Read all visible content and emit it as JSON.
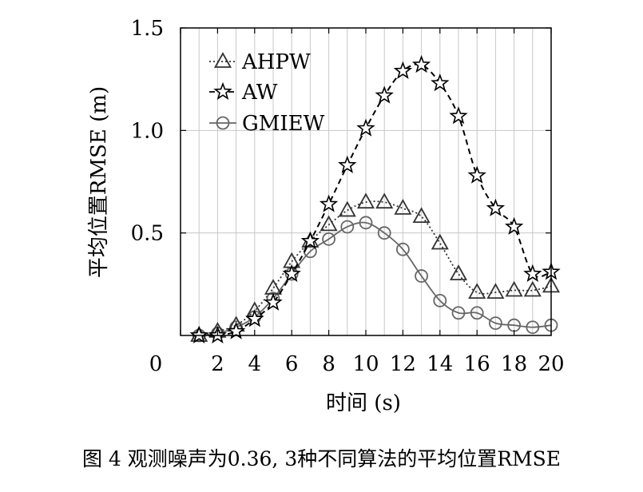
{
  "chart_data": {
    "type": "line",
    "x": [
      1,
      2,
      3,
      4,
      5,
      6,
      7,
      8,
      9,
      10,
      11,
      12,
      13,
      14,
      15,
      16,
      17,
      18,
      19,
      20
    ],
    "xlim": [
      0,
      20
    ],
    "ylim": [
      0,
      1.5
    ],
    "xticks": [
      "0",
      "2",
      "4",
      "6",
      "8",
      "10",
      "12",
      "14",
      "16",
      "18",
      "20"
    ],
    "yticks": [
      "0.5",
      "1.0",
      "1.5"
    ],
    "ylabel": "平均位置RMSE (m)",
    "xlabel": "时间 (s)",
    "grid": true,
    "legend_position": "top-left",
    "series": [
      {
        "name": "AHPW",
        "marker": "triangle",
        "line": "dotted",
        "color": "#333333",
        "values": [
          0.0,
          0.02,
          0.05,
          0.12,
          0.23,
          0.36,
          0.46,
          0.54,
          0.61,
          0.65,
          0.65,
          0.62,
          0.58,
          0.45,
          0.3,
          0.21,
          0.21,
          0.22,
          0.22,
          0.24
        ]
      },
      {
        "name": "AW",
        "marker": "star",
        "line": "dashed",
        "color": "#000000",
        "values": [
          0.0,
          0.0,
          0.02,
          0.08,
          0.16,
          0.3,
          0.46,
          0.64,
          0.83,
          1.01,
          1.17,
          1.29,
          1.32,
          1.23,
          1.07,
          0.78,
          0.62,
          0.53,
          0.3,
          0.31
        ]
      },
      {
        "name": "GMIEW",
        "marker": "circle",
        "line": "solid",
        "color": "#666666",
        "values": [
          0.0,
          0.01,
          0.04,
          0.09,
          0.18,
          0.3,
          0.41,
          0.47,
          0.53,
          0.55,
          0.5,
          0.42,
          0.29,
          0.17,
          0.11,
          0.11,
          0.06,
          0.05,
          0.04,
          0.05
        ]
      }
    ]
  },
  "caption": "图 4 观测噪声为0.36, 3种不同算法的平均位置RMSE"
}
